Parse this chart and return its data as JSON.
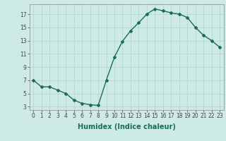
{
  "x": [
    0,
    1,
    2,
    3,
    4,
    5,
    6,
    7,
    8,
    9,
    10,
    11,
    12,
    13,
    14,
    15,
    16,
    17,
    18,
    19,
    20,
    21,
    22,
    23
  ],
  "y": [
    7,
    6,
    6,
    5.5,
    5,
    4,
    3.5,
    3.3,
    3.2,
    7,
    10.5,
    12.9,
    14.5,
    15.7,
    17,
    17.8,
    17.5,
    17.2,
    17,
    16.5,
    15,
    13.8,
    13,
    12
  ],
  "line_color": "#1a6b5e",
  "marker": "D",
  "marker_size": 2,
  "linewidth": 1.0,
  "background_color": "#ceeae4",
  "grid_color": "#b0d4cc",
  "xlabel": "Humidex (Indice chaleur)",
  "xlabel_fontsize": 7,
  "ylabel_ticks": [
    3,
    5,
    7,
    9,
    11,
    13,
    15,
    17
  ],
  "xticks": [
    0,
    1,
    2,
    3,
    4,
    5,
    6,
    7,
    8,
    9,
    10,
    11,
    12,
    13,
    14,
    15,
    16,
    17,
    18,
    19,
    20,
    21,
    22,
    23
  ],
  "xlim": [
    -0.5,
    23.5
  ],
  "ylim": [
    2.5,
    18.5
  ],
  "tick_fontsize": 5.5
}
